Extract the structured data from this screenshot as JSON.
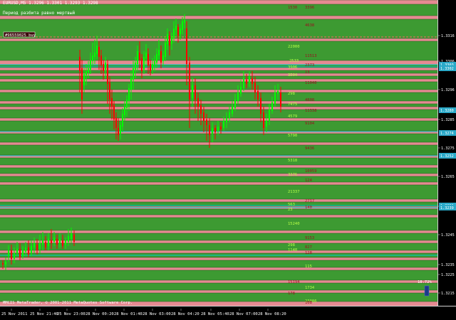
{
  "header": {
    "symbol_line": "EURUSD,M5  1.3296 1.3301 1.3293 1.3298",
    "status_text": "Период разбита равно мертвый",
    "order_tag": "#96559025 buy"
  },
  "watermark": "MMCIS MetaTrader, © 2001-2011 MetaQuotes Software Corp.",
  "info_box": {
    "value": "18.72%"
  },
  "colors": {
    "up_candle": "#00ff00",
    "down_candle": "#ff0000",
    "band_pink": "#e58a92",
    "band_green": "#3d9a32",
    "level_line": "#00cccc",
    "dashed_order_line": "#ff6666",
    "band_text_green": "#b6ff47",
    "band_text_red": "#9a1020",
    "price_highlight": "#2aa9c8"
  },
  "band_labels": [
    {
      "text": "1530",
      "color": "#9a1020"
    },
    {
      "text": "3396",
      "color": "#9a1020"
    },
    {
      "text": "4638",
      "color": "#9a1020"
    },
    {
      "text": "22000",
      "color": "#b6ff47"
    },
    {
      "text": "11513",
      "color": "#9a1020"
    },
    {
      "text": "2533",
      "color": "#b6ff47"
    },
    {
      "text": "2373",
      "color": "#9a1020"
    },
    {
      "text": "3906",
      "color": "#b6ff47"
    },
    {
      "text": "13",
      "color": "#9a1020"
    },
    {
      "text": "3504",
      "color": "#b6ff47"
    },
    {
      "text": "11040",
      "color": "#9a1020"
    },
    {
      "text": "298",
      "color": "#b6ff47"
    },
    {
      "text": "4808",
      "color": "#9a1020"
    },
    {
      "text": "7475",
      "color": "#b6ff47"
    },
    {
      "text": "11338",
      "color": "#9a1020"
    },
    {
      "text": "4579",
      "color": "#b6ff47"
    },
    {
      "text": "9104",
      "color": "#9a1020"
    },
    {
      "text": "5790",
      "color": "#b6ff47"
    },
    {
      "text": "9436",
      "color": "#9a1020"
    },
    {
      "text": "5318",
      "color": "#b6ff47"
    },
    {
      "text": "10059",
      "color": "#9a1020"
    },
    {
      "text": "3376",
      "color": "#b6ff47"
    },
    {
      "text": "124",
      "color": "#9a1020"
    },
    {
      "text": "21337",
      "color": "#b6ff47"
    },
    {
      "text": "2717",
      "color": "#9a1020"
    },
    {
      "text": "563",
      "color": "#b6ff47"
    },
    {
      "text": "140",
      "color": "#9a1020"
    },
    {
      "text": "23",
      "color": "#b6ff47"
    },
    {
      "text": "15240",
      "color": "#b6ff47"
    },
    {
      "text": "9153",
      "color": "#9a1020"
    },
    {
      "text": "298",
      "color": "#b6ff47"
    },
    {
      "text": "827",
      "color": "#9a1020"
    },
    {
      "text": "1148",
      "color": "#b6ff47"
    },
    {
      "text": "128",
      "color": "#9a1020"
    },
    {
      "text": "115",
      "color": "#b6ff47"
    },
    {
      "text": "15194",
      "color": "#9a1020"
    },
    {
      "text": "1734",
      "color": "#b6ff47"
    },
    {
      "text": "178",
      "color": "#9a1020"
    },
    {
      "text": "23086",
      "color": "#b6ff47"
    },
    {
      "text": "108",
      "color": "#9a1020"
    }
  ],
  "price_scale": {
    "ticks": [
      "1.3316",
      "1.3306",
      "1.3296",
      "1.3285",
      "1.3275",
      "1.3265",
      "1.3255",
      "1.3245",
      "1.3235",
      "1.3225",
      "1.3215"
    ],
    "markers": [
      "1.3303",
      "1.3302",
      "1.3280",
      "1.3274",
      "1.3252",
      "1.3251",
      "1.3239"
    ]
  },
  "time_scale": {
    "labels": [
      "25 Nov 2011",
      "25 Nov 21:40",
      "25 Nov 23:00",
      "28 Nov 00:20",
      "28 Nov 01:40",
      "28 Nov 03:00",
      "28 Nov 04:20",
      "28 Nov 05:40",
      "28 Nov 07:00",
      "28 Nov 08:20"
    ]
  }
}
